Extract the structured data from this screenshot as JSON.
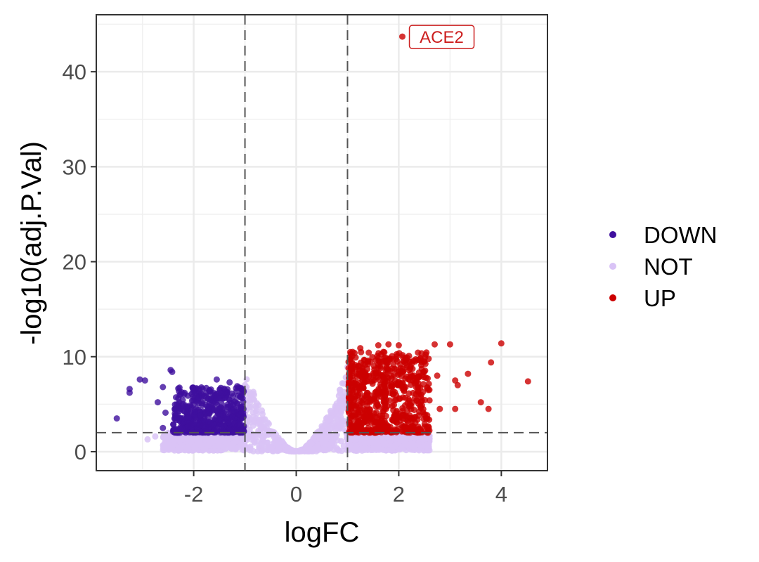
{
  "chart_data": {
    "type": "scatter",
    "xlabel": "logFC",
    "ylabel": "-log10(adj.P.Val)",
    "xlim": [
      -3.9,
      4.9
    ],
    "ylim": [
      -2,
      46
    ],
    "x_ticks": [
      -2,
      0,
      2,
      4
    ],
    "y_ticks": [
      0,
      10,
      20,
      30,
      40
    ],
    "grid": true,
    "theme": "bw",
    "thresholds": {
      "logFC": [
        -1,
        1
      ],
      "neg_log10_adj_p": 2
    },
    "legend": {
      "position": "right"
    },
    "colors": {
      "DOWN": "#3f0f9e",
      "NOT": "#d9c3f6",
      "UP": "#cc0000",
      "label_border": "#cc1e1e"
    },
    "series": [
      {
        "name": "DOWN",
        "points": [
          [
            -3.5,
            3.5
          ],
          [
            -3.25,
            6.2
          ],
          [
            -3.25,
            6.6
          ],
          [
            -3.05,
            7.6
          ],
          [
            -2.95,
            7.5
          ],
          [
            -2.6,
            6.8
          ],
          [
            -2.45,
            8.6
          ],
          [
            -2.42,
            8.4
          ],
          [
            -2.7,
            5.2
          ],
          [
            -2.55,
            4.1
          ],
          [
            -2.3,
            5.6
          ],
          [
            -2.2,
            3.1
          ],
          [
            -2.6,
            2.5
          ],
          [
            -2.4,
            2.1
          ],
          [
            -1.55,
            7.6
          ],
          [
            -1.3,
            7.3
          ],
          [
            -1.15,
            6.9
          ],
          [
            -1.05,
            6.6
          ],
          [
            -1.9,
            6.6
          ],
          [
            -1.75,
            5.8
          ],
          [
            -1.2,
            4.2
          ],
          [
            -1.45,
            2.4
          ],
          [
            -1.1,
            2.2
          ]
        ],
        "generated": {
          "n": 550,
          "x_range": [
            -2.4,
            -1.02
          ],
          "y_range": [
            2.0,
            6.8
          ],
          "seed": 11
        }
      },
      {
        "name": "NOT",
        "points": [
          [
            -2.75,
            1.6
          ],
          [
            -2.5,
            1.8
          ],
          [
            -2.2,
            1.9
          ],
          [
            -2.9,
            1.3
          ],
          [
            -1.0,
            7.0
          ],
          [
            -0.9,
            6.0
          ],
          [
            -0.8,
            4.8
          ],
          [
            1.0,
            8.9
          ],
          [
            0.9,
            7.2
          ],
          [
            0.85,
            6.5
          ],
          [
            2.25,
            1.8
          ],
          [
            2.4,
            1.6
          ]
        ],
        "generated": {
          "n": 1600,
          "x_range": [
            -2.7,
            2.4
          ],
          "y_max": 8.9,
          "seed": 7
        }
      },
      {
        "name": "UP",
        "points": [
          [
            2.07,
            43.7
          ],
          [
            4.0,
            11.4
          ],
          [
            3.8,
            9.4
          ],
          [
            3.0,
            11.3
          ],
          [
            2.7,
            11.3
          ],
          [
            2.5,
            9.5
          ],
          [
            2.75,
            8.0
          ],
          [
            3.1,
            7.5
          ],
          [
            3.15,
            7.0
          ],
          [
            3.35,
            8.2
          ],
          [
            3.6,
            5.2
          ],
          [
            3.75,
            4.5
          ],
          [
            4.52,
            7.4
          ],
          [
            3.1,
            4.5
          ],
          [
            2.6,
            5.4
          ],
          [
            2.8,
            4.5
          ],
          [
            2.3,
            8.0
          ],
          [
            1.6,
            11.2
          ],
          [
            1.8,
            11.3
          ],
          [
            2.0,
            11.2
          ],
          [
            1.25,
            10.9
          ],
          [
            1.1,
            10.5
          ],
          [
            1.05,
            9.7
          ],
          [
            1.7,
            10.5
          ]
        ],
        "generated": {
          "n": 700,
          "x_range": [
            1.02,
            2.6
          ],
          "y_range": [
            2.0,
            10.5
          ],
          "seed": 23
        }
      }
    ],
    "annotations": [
      {
        "text": "ACE2",
        "x": 2.07,
        "y": 43.7
      }
    ]
  }
}
